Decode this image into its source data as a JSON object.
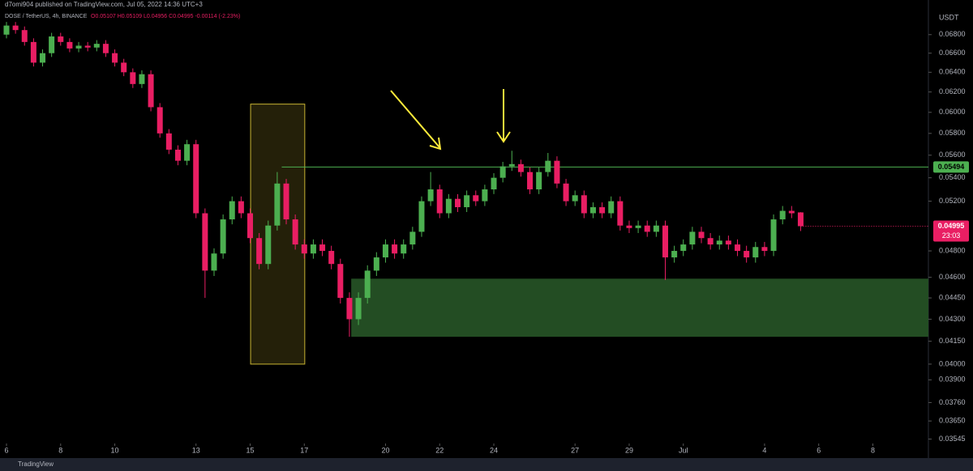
{
  "header": {
    "publisher": "d7omi904 published on TradingView.com, Jul 05, 2022 14:36 UTC+3",
    "symbol": "DOSE / TetherUS, 4h, BINANCE",
    "ohlc": "O0.05107 H0.05109 L0.04956 C0.04995 -0.00114 (-2.23%)"
  },
  "footer": {
    "brand": "TradingView"
  },
  "chart_data": {
    "type": "candlestick",
    "unit": "USDT",
    "log_scale": true,
    "grid": false,
    "up_color": "#4caf50",
    "down_color": "#e91e63",
    "open": [
      0.068,
      0.069,
      0.0685,
      0.0672,
      0.065,
      0.066,
      0.0678,
      0.0672,
      0.0665,
      0.0668,
      0.0666,
      0.067,
      0.066,
      0.065,
      0.064,
      0.0628,
      0.0638,
      0.0605,
      0.058,
      0.0565,
      0.0555,
      0.057,
      0.051,
      0.0465,
      0.0478,
      0.0505,
      0.052,
      0.051,
      0.049,
      0.047,
      0.05,
      0.0535,
      0.0505,
      0.0485,
      0.0478,
      0.0485,
      0.048,
      0.047,
      0.0445,
      0.043,
      0.0445,
      0.0465,
      0.0475,
      0.0485,
      0.0478,
      0.0485,
      0.0495,
      0.052,
      0.053,
      0.051,
      0.0522,
      0.0515,
      0.0525,
      0.052,
      0.053,
      0.054,
      0.055,
      0.0552,
      0.0545,
      0.053,
      0.0545,
      0.0555,
      0.0535,
      0.052,
      0.0525,
      0.051,
      0.0515,
      0.051,
      0.052,
      0.05,
      0.0498,
      0.05,
      0.0495,
      0.05,
      0.0475,
      0.048,
      0.0485,
      0.0495,
      0.049,
      0.0485,
      0.0488,
      0.0485,
      0.048,
      0.0475,
      0.0483,
      0.048,
      0.0505,
      0.0512,
      0.05107
    ],
    "high": [
      0.0694,
      0.0694,
      0.0689,
      0.0676,
      0.0664,
      0.0682,
      0.0682,
      0.0676,
      0.0672,
      0.0672,
      0.0674,
      0.0674,
      0.0664,
      0.0654,
      0.0644,
      0.0642,
      0.0642,
      0.0609,
      0.0584,
      0.0569,
      0.0574,
      0.0574,
      0.0514,
      0.0482,
      0.0509,
      0.0524,
      0.0524,
      0.0514,
      0.0494,
      0.0504,
      0.0545,
      0.0539,
      0.0509,
      0.0489,
      0.0489,
      0.0489,
      0.0484,
      0.0474,
      0.0449,
      0.0449,
      0.0469,
      0.0479,
      0.0489,
      0.0489,
      0.0489,
      0.0499,
      0.0524,
      0.0545,
      0.0534,
      0.0526,
      0.0526,
      0.0529,
      0.0529,
      0.0534,
      0.0544,
      0.0554,
      0.0564,
      0.0556,
      0.0549,
      0.0549,
      0.0562,
      0.0559,
      0.0539,
      0.0529,
      0.0529,
      0.0519,
      0.0519,
      0.0524,
      0.0524,
      0.0504,
      0.0504,
      0.0504,
      0.0504,
      0.0504,
      0.0484,
      0.0489,
      0.0499,
      0.0499,
      0.0494,
      0.0492,
      0.0492,
      0.0489,
      0.0484,
      0.0487,
      0.0487,
      0.0509,
      0.0516,
      0.0516,
      0.05109
    ],
    "low": [
      0.0676,
      0.0681,
      0.0668,
      0.0646,
      0.0646,
      0.0656,
      0.0668,
      0.0661,
      0.0661,
      0.0662,
      0.0662,
      0.0656,
      0.0646,
      0.0636,
      0.0624,
      0.0624,
      0.0601,
      0.0576,
      0.0561,
      0.0551,
      0.0551,
      0.0506,
      0.0445,
      0.0461,
      0.0474,
      0.0501,
      0.0506,
      0.0486,
      0.0466,
      0.0466,
      0.0496,
      0.0501,
      0.0481,
      0.0474,
      0.0474,
      0.0476,
      0.0466,
      0.0441,
      0.0418,
      0.0426,
      0.0441,
      0.0461,
      0.0471,
      0.0474,
      0.0474,
      0.0481,
      0.0491,
      0.0516,
      0.0506,
      0.0506,
      0.0511,
      0.0511,
      0.0516,
      0.0516,
      0.0526,
      0.0536,
      0.0546,
      0.0541,
      0.0526,
      0.0526,
      0.0541,
      0.0531,
      0.0516,
      0.0516,
      0.0506,
      0.0506,
      0.0506,
      0.0506,
      0.0496,
      0.0494,
      0.0494,
      0.0491,
      0.0491,
      0.0458,
      0.0471,
      0.0476,
      0.0481,
      0.0486,
      0.0481,
      0.0481,
      0.0481,
      0.0476,
      0.0471,
      0.0471,
      0.0476,
      0.0476,
      0.0501,
      0.0506,
      0.04956
    ],
    "close": [
      0.069,
      0.0685,
      0.0672,
      0.065,
      0.066,
      0.0678,
      0.0672,
      0.0665,
      0.0668,
      0.0666,
      0.067,
      0.066,
      0.065,
      0.064,
      0.0628,
      0.0638,
      0.0605,
      0.058,
      0.0565,
      0.0555,
      0.057,
      0.051,
      0.0465,
      0.0478,
      0.0505,
      0.052,
      0.051,
      0.049,
      0.047,
      0.05,
      0.0535,
      0.0505,
      0.0485,
      0.0478,
      0.0485,
      0.048,
      0.047,
      0.0445,
      0.043,
      0.0445,
      0.0465,
      0.0475,
      0.0485,
      0.0478,
      0.0485,
      0.0495,
      0.052,
      0.053,
      0.051,
      0.0522,
      0.0515,
      0.0525,
      0.052,
      0.053,
      0.054,
      0.055,
      0.0552,
      0.0545,
      0.053,
      0.0545,
      0.0555,
      0.0535,
      0.052,
      0.0525,
      0.051,
      0.0515,
      0.051,
      0.052,
      0.05,
      0.0498,
      0.05,
      0.0495,
      0.05,
      0.0475,
      0.048,
      0.0485,
      0.0495,
      0.049,
      0.0485,
      0.0488,
      0.0485,
      0.048,
      0.0475,
      0.0483,
      0.048,
      0.0505,
      0.0512,
      0.051,
      0.04995
    ],
    "ylim": [
      0.0352,
      0.0719
    ],
    "yticks": [
      {
        "value": 0.068,
        "label": "0.06800"
      },
      {
        "value": 0.066,
        "label": "0.06600"
      },
      {
        "value": 0.064,
        "label": "0.06400"
      },
      {
        "value": 0.062,
        "label": "0.06200"
      },
      {
        "value": 0.06,
        "label": "0.06000"
      },
      {
        "value": 0.058,
        "label": "0.05800"
      },
      {
        "value": 0.056,
        "label": "0.05600"
      },
      {
        "value": 0.054,
        "label": "0.05400"
      },
      {
        "value": 0.052,
        "label": "0.05200"
      },
      {
        "value": 0.048,
        "label": "0.04800"
      },
      {
        "value": 0.046,
        "label": "0.04600"
      },
      {
        "value": 0.0445,
        "label": "0.04450"
      },
      {
        "value": 0.043,
        "label": "0.04300"
      },
      {
        "value": 0.0415,
        "label": "0.04150"
      },
      {
        "value": 0.04,
        "label": "0.04000"
      },
      {
        "value": 0.039,
        "label": "0.03900"
      },
      {
        "value": 0.0376,
        "label": "0.03760"
      },
      {
        "value": 0.0365,
        "label": "0.03650"
      },
      {
        "value": 0.03545,
        "label": "0.03545"
      }
    ],
    "xticks": [
      {
        "value": 0,
        "label": "6"
      },
      {
        "value": 6,
        "label": "8"
      },
      {
        "value": 12,
        "label": "10"
      },
      {
        "value": 21,
        "label": "13"
      },
      {
        "value": 27,
        "label": "15"
      },
      {
        "value": 33,
        "label": "17"
      },
      {
        "value": 42,
        "label": "20"
      },
      {
        "value": 48,
        "label": "22"
      },
      {
        "value": 54,
        "label": "24"
      },
      {
        "value": 63,
        "label": "27"
      },
      {
        "value": 69,
        "label": "29"
      },
      {
        "value": 75,
        "label": "Jul"
      },
      {
        "value": 84,
        "label": "4"
      },
      {
        "value": 90,
        "label": "6"
      },
      {
        "value": 96,
        "label": "8"
      }
    ],
    "price_line": 0.05494,
    "price_line_color": "#4caf50",
    "last_price": 0.04995,
    "countdown": "23:03",
    "demand_zone": [
      0.0418,
      0.0459
    ],
    "demand_zone_color": "#234d23",
    "highlight_box": [
      0.04,
      0.0608
    ],
    "highlight_box_color": "#c8b432"
  }
}
